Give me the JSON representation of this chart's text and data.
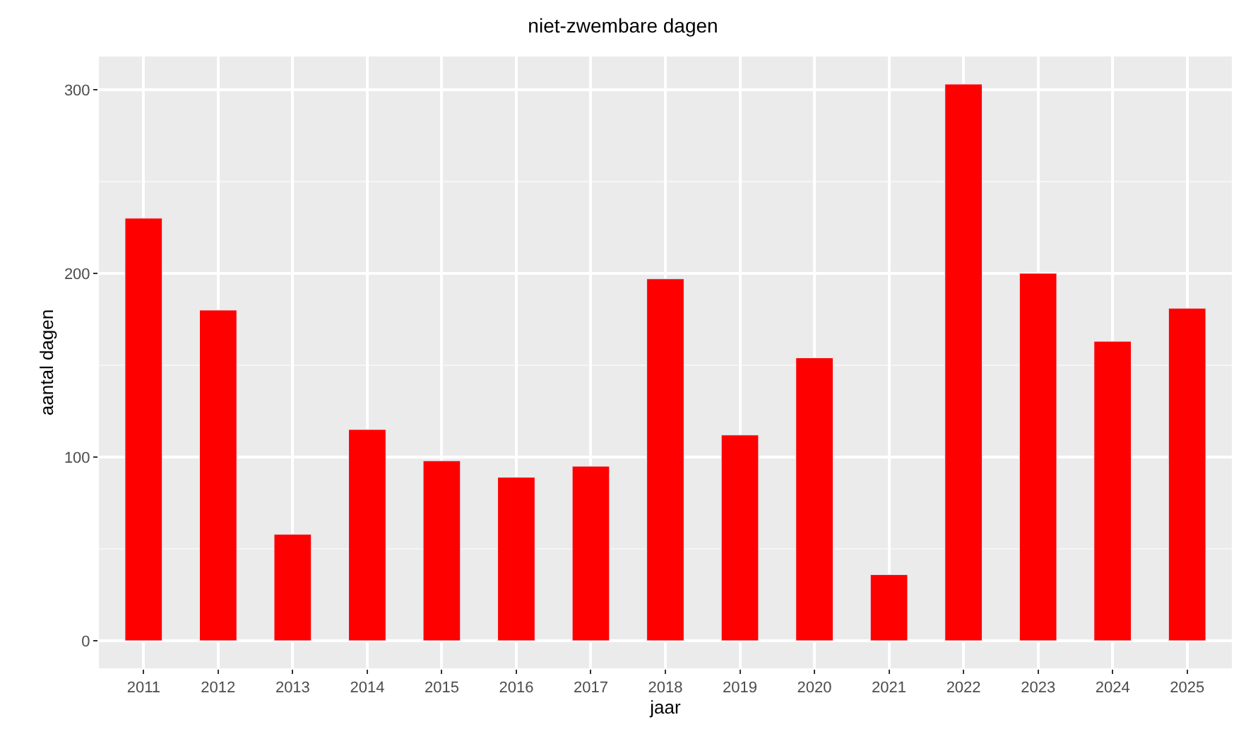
{
  "chart_data": {
    "type": "bar",
    "title": "niet-zwembare dagen",
    "xlabel": "jaar",
    "ylabel": "aantal dagen",
    "categories": [
      "2011",
      "2012",
      "2013",
      "2014",
      "2015",
      "2016",
      "2017",
      "2018",
      "2019",
      "2020",
      "2021",
      "2022",
      "2023",
      "2024",
      "2025"
    ],
    "values": [
      230,
      180,
      58,
      115,
      98,
      89,
      95,
      197,
      112,
      154,
      36,
      303,
      200,
      163,
      181
    ],
    "color": "#ff0000",
    "ylim": [
      -15,
      318
    ],
    "yticks": [
      0,
      100,
      200,
      300
    ],
    "grid": true
  }
}
